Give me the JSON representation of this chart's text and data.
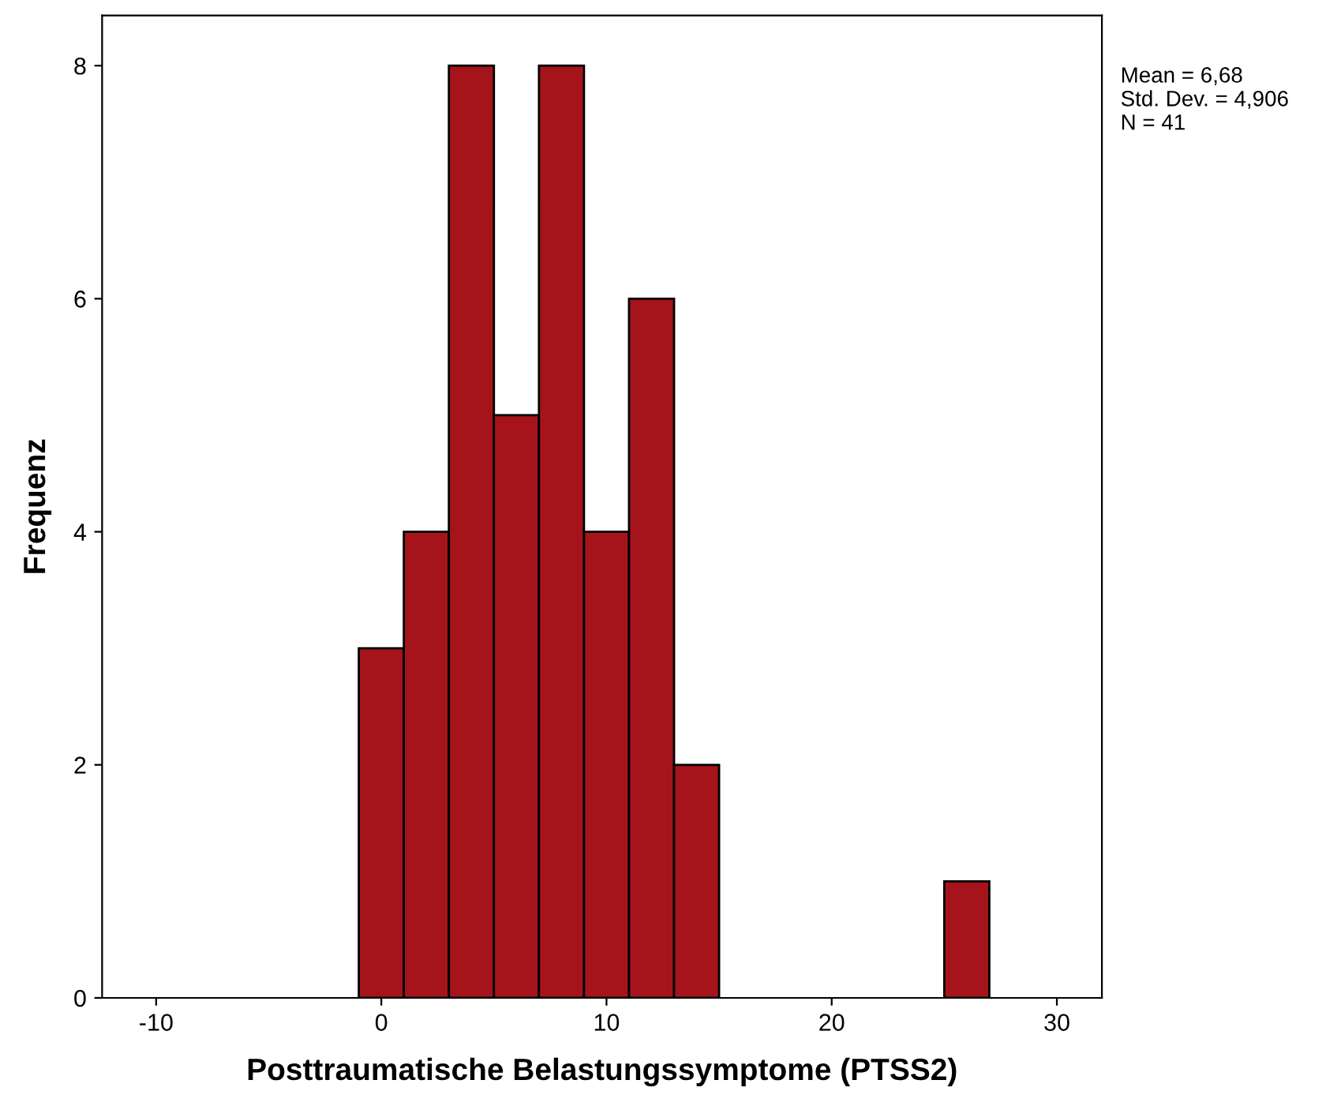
{
  "chart_data": {
    "type": "histogram",
    "xlabel": "Posttraumatische Belastungssymptome (PTSS2)",
    "ylabel": "Frequenz",
    "bins": [
      -1,
      1,
      3,
      5,
      7,
      9,
      11,
      13,
      15,
      17,
      19,
      21,
      23,
      25,
      27
    ],
    "values": [
      3,
      4,
      8,
      5,
      8,
      4,
      6,
      2,
      0,
      0,
      0,
      0,
      0,
      1
    ],
    "color": "#a5141b",
    "xlim": [
      -12.4,
      32
    ],
    "xticks": [
      -10,
      0,
      10,
      20,
      30
    ],
    "ylim": [
      0,
      8.43
    ],
    "yticks": [
      0,
      2,
      4,
      6,
      8
    ],
    "grid": false,
    "annotations": [
      "Mean = 6,68\nStd. Dev. = 4,906\nN = 41"
    ]
  }
}
